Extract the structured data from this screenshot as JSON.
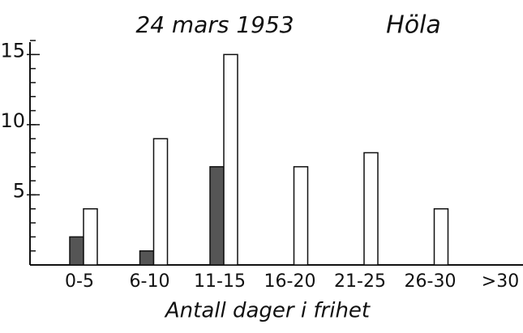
{
  "chart_data": {
    "type": "bar",
    "title": "24 mars 1953",
    "subtitle": "Höla",
    "x_label": "Antall dager i frihet",
    "categories": [
      "0-5",
      "6-10",
      "11-15",
      "16-20",
      "21-25",
      "26-30",
      ">30"
    ],
    "series": [
      {
        "color": "#555555",
        "values": [
          2,
          1,
          7,
          0,
          0,
          0,
          0
        ]
      },
      {
        "color": "#ffffff",
        "values": [
          4,
          9,
          15,
          7,
          8,
          4,
          0
        ]
      }
    ],
    "ylim": [
      0,
      16
    ],
    "yticks": [
      5,
      10,
      15
    ],
    "minor_yticks": [
      1,
      2,
      3,
      4,
      5,
      6,
      7,
      8,
      9,
      10,
      11,
      12,
      13,
      14,
      15,
      16
    ],
    "grid": false
  }
}
